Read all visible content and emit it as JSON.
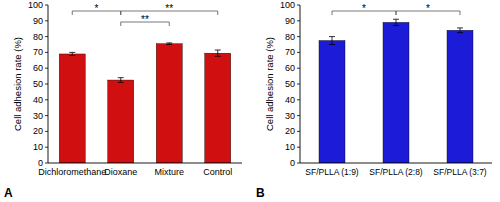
{
  "chart_data": [
    {
      "type": "bar",
      "title": "A",
      "y_label": "Cell adhesion rate (%)",
      "categories": [
        "Dichloromethane",
        "Dioxane",
        "Mixture",
        "Control"
      ],
      "values": [
        69,
        52.5,
        75.5,
        69.5
      ],
      "errors": [
        1,
        1.5,
        0.5,
        2
      ],
      "color": "#d01010",
      "ylim": [
        0,
        100
      ],
      "yticks": [
        0,
        10,
        20,
        30,
        40,
        50,
        60,
        70,
        80,
        90,
        100
      ],
      "grid": false,
      "annotations": [
        {
          "text": "*",
          "from": "Dichloromethane",
          "to": "Dioxane"
        },
        {
          "text": "**",
          "from": "Dioxane",
          "to": "Mixture"
        },
        {
          "text": "**",
          "from": "Dioxane",
          "to": "Control"
        }
      ]
    },
    {
      "type": "bar",
      "title": "B",
      "y_label": "Cell adhesion rate (%)",
      "categories": [
        "SF/PLLA (1:9)",
        "SF/PLLA (2:8)",
        "SF/PLLA (3:7)"
      ],
      "values": [
        77.5,
        89,
        84
      ],
      "errors": [
        2.5,
        2,
        1.5
      ],
      "color": "#1c1cd8",
      "ylim": [
        0,
        100
      ],
      "yticks": [
        0,
        10,
        20,
        30,
        40,
        50,
        60,
        70,
        80,
        90,
        100
      ],
      "grid": false,
      "annotations": [
        {
          "text": "*",
          "from": "SF/PLLA (1:9)",
          "to": "SF/PLLA (2:8)"
        },
        {
          "text": "*",
          "from": "SF/PLLA (2:8)",
          "to": "SF/PLLA (3:7)"
        }
      ]
    }
  ]
}
